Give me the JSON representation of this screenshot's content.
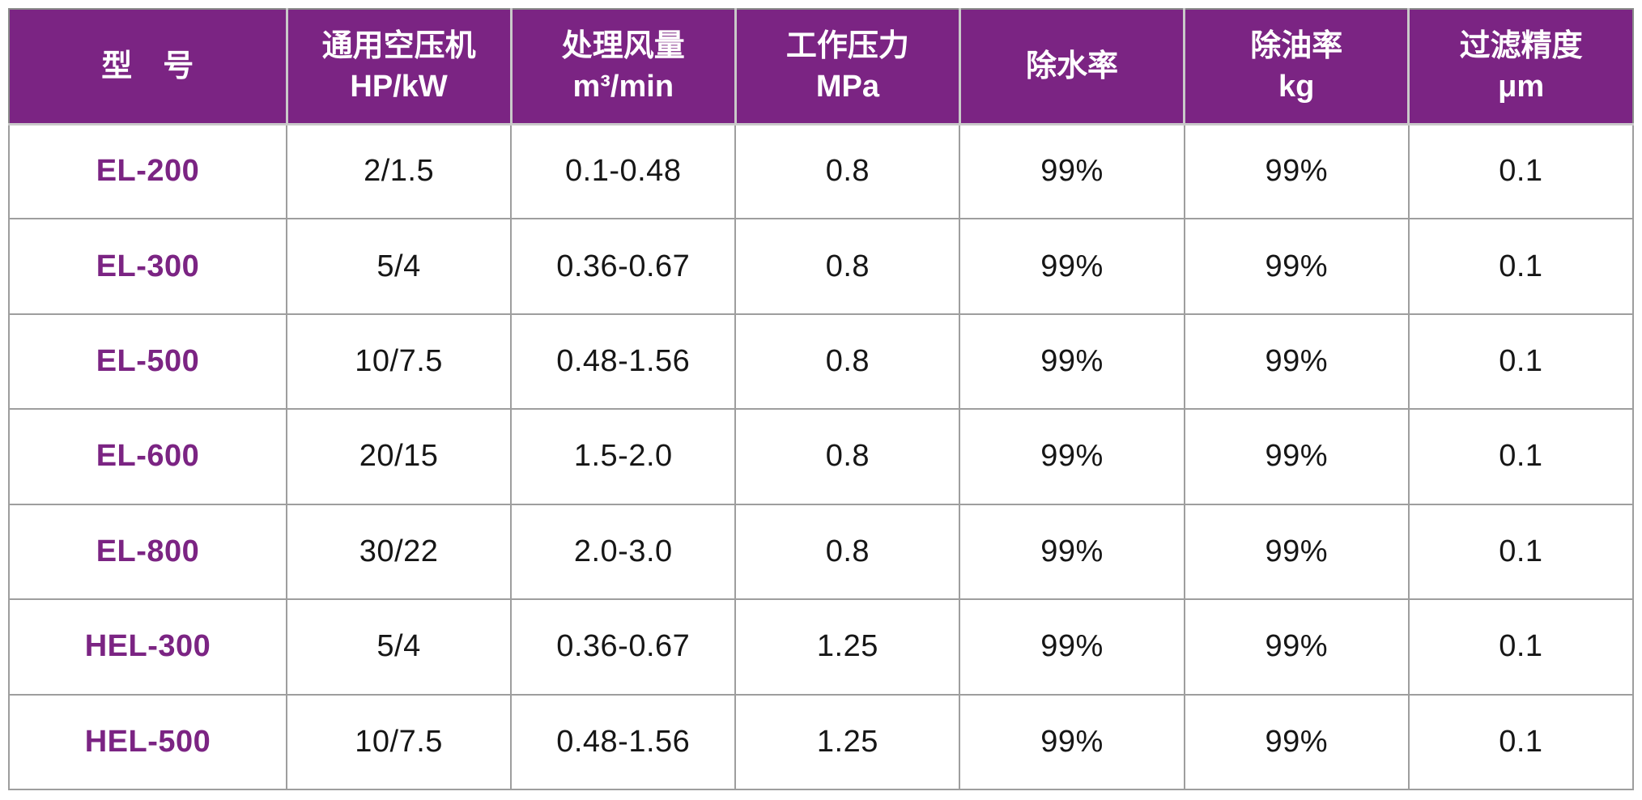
{
  "colors": {
    "header_bg": "#7b2483",
    "header_text": "#ffffff",
    "model_text": "#7b2483",
    "body_text": "#161616",
    "grid_line": "#9e9e9e",
    "header_separator": "#c9c9c9",
    "background": "#ffffff"
  },
  "table": {
    "columns": [
      {
        "line1": "型　号",
        "line2": ""
      },
      {
        "line1": "通用空压机",
        "line2": "HP/kW"
      },
      {
        "line1": "处理风量",
        "line2": "m³/min"
      },
      {
        "line1": "工作压力",
        "line2": "MPa"
      },
      {
        "line1": "除水率",
        "line2": ""
      },
      {
        "line1": "除油率",
        "line2": "kg"
      },
      {
        "line1": "过滤精度",
        "line2": "μm"
      }
    ],
    "rows": [
      {
        "model": "EL-200",
        "hp_kw": "2/1.5",
        "flow": "0.1-0.48",
        "pressure": "0.8",
        "water": "99%",
        "oil": "99%",
        "precision": "0.1"
      },
      {
        "model": "EL-300",
        "hp_kw": "5/4",
        "flow": "0.36-0.67",
        "pressure": "0.8",
        "water": "99%",
        "oil": "99%",
        "precision": "0.1"
      },
      {
        "model": "EL-500",
        "hp_kw": "10/7.5",
        "flow": "0.48-1.56",
        "pressure": "0.8",
        "water": "99%",
        "oil": "99%",
        "precision": "0.1"
      },
      {
        "model": "EL-600",
        "hp_kw": "20/15",
        "flow": "1.5-2.0",
        "pressure": "0.8",
        "water": "99%",
        "oil": "99%",
        "precision": "0.1"
      },
      {
        "model": "EL-800",
        "hp_kw": "30/22",
        "flow": "2.0-3.0",
        "pressure": "0.8",
        "water": "99%",
        "oil": "99%",
        "precision": "0.1"
      },
      {
        "model": "HEL-300",
        "hp_kw": "5/4",
        "flow": "0.36-0.67",
        "pressure": "1.25",
        "water": "99%",
        "oil": "99%",
        "precision": "0.1"
      },
      {
        "model": "HEL-500",
        "hp_kw": "10/7.5",
        "flow": "0.48-1.56",
        "pressure": "1.25",
        "water": "99%",
        "oil": "99%",
        "precision": "0.1"
      }
    ]
  },
  "chart_data": {
    "type": "table",
    "title": "",
    "columns": [
      "型　号",
      "通用空压机 HP/kW",
      "处理风量 m³/min",
      "工作压力 MPa",
      "除水率",
      "除油率 kg",
      "过滤精度 μm"
    ],
    "rows": [
      [
        "EL-200",
        "2/1.5",
        "0.1-0.48",
        "0.8",
        "99%",
        "99%",
        "0.1"
      ],
      [
        "EL-300",
        "5/4",
        "0.36-0.67",
        "0.8",
        "99%",
        "99%",
        "0.1"
      ],
      [
        "EL-500",
        "10/7.5",
        "0.48-1.56",
        "0.8",
        "99%",
        "99%",
        "0.1"
      ],
      [
        "EL-600",
        "20/15",
        "1.5-2.0",
        "0.8",
        "99%",
        "99%",
        "0.1"
      ],
      [
        "EL-800",
        "30/22",
        "2.0-3.0",
        "0.8",
        "99%",
        "99%",
        "0.1"
      ],
      [
        "HEL-300",
        "5/4",
        "0.36-0.67",
        "1.25",
        "99%",
        "99%",
        "0.1"
      ],
      [
        "HEL-500",
        "10/7.5",
        "0.48-1.56",
        "1.25",
        "99%",
        "99%",
        "0.1"
      ]
    ],
    "layout": {
      "header_style": "purple-filled",
      "grid": true,
      "model_column_highlight": "purple-bold"
    }
  }
}
